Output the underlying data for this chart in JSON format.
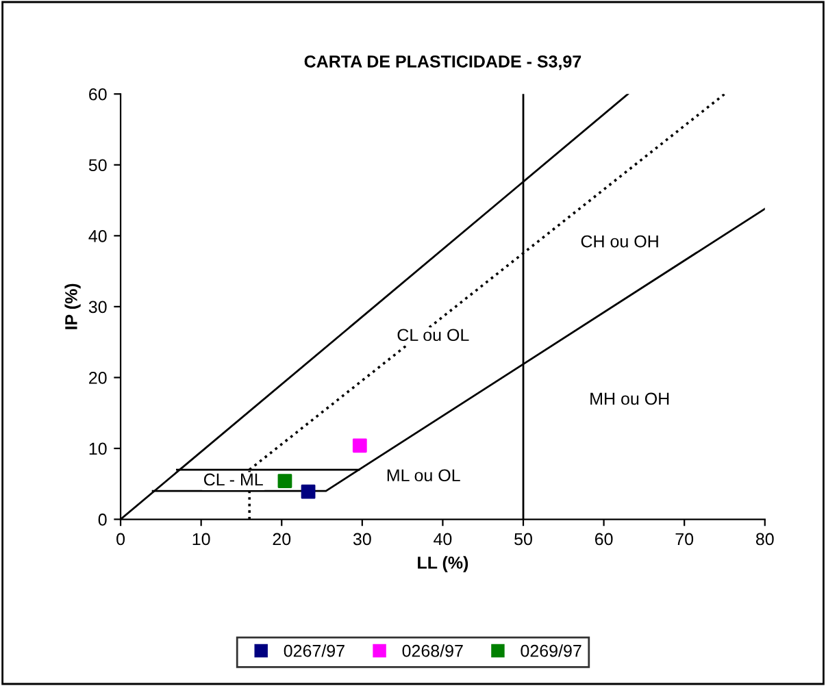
{
  "chart_data": {
    "type": "scatter",
    "title": "CARTA DE PLASTICIDADE - S3,97",
    "xlabel": "LL (%)",
    "ylabel": "IP (%)",
    "xlim": [
      0,
      80
    ],
    "ylim": [
      0,
      60
    ],
    "xticks": [
      0,
      10,
      20,
      30,
      40,
      50,
      60,
      70,
      80
    ],
    "yticks": [
      0,
      10,
      20,
      30,
      40,
      50,
      60
    ],
    "grid": false,
    "legend": "bottom",
    "marker": "square",
    "series": [
      {
        "name": "0267/97",
        "color": "#000080",
        "x": [
          23.3
        ],
        "values": [
          3.9
        ]
      },
      {
        "name": "0268/97",
        "color": "#ff00ff",
        "x": [
          29.7
        ],
        "values": [
          10.4
        ]
      },
      {
        "name": "0269/97",
        "color": "#008000",
        "x": [
          20.4
        ],
        "values": [
          5.4
        ]
      },
      {
        "type": "line",
        "color": "#000000",
        "line_style": "solid",
        "marker": "none",
        "x": [
          0,
          63
        ],
        "values": [
          0,
          60
        ]
      },
      {
        "type": "line",
        "color": "#000000",
        "line_style": "dotted",
        "marker": "none",
        "x": [
          16,
          75
        ],
        "values": [
          7,
          60
        ]
      },
      {
        "type": "line",
        "color": "#000000",
        "line_style": "solid",
        "marker": "none",
        "x": [
          4,
          25.5,
          80
        ],
        "values": [
          4,
          4,
          43.8
        ]
      },
      {
        "type": "line",
        "color": "#000000",
        "line_style": "solid",
        "marker": "none",
        "x": [
          7,
          29.6
        ],
        "values": [
          7,
          7
        ]
      },
      {
        "type": "line",
        "color": "#000000",
        "line_style": "dotted",
        "marker": "none",
        "x": [
          16,
          16
        ],
        "values": [
          0,
          7
        ]
      }
    ],
    "ref_lines": [
      {
        "axis": "x",
        "value": 50,
        "color": "#000000",
        "line_style": "solid"
      }
    ],
    "annotations": [
      "CH ou OH",
      "CL ou OL",
      "MH ou OH",
      "ML ou OL",
      "CL - ML"
    ]
  }
}
